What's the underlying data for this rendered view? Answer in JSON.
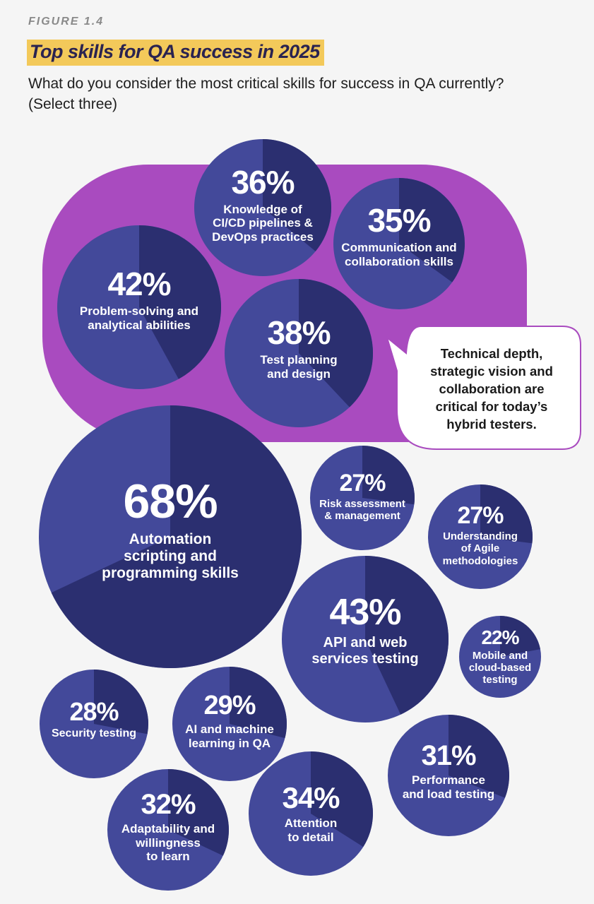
{
  "figure_label": "FIGURE 1.4",
  "title": "Top skills for QA success in 2025",
  "subtitle": "What do you consider the most critical skills for success in QA currently? (Select three)",
  "callout": "Technical depth,\nstrategic vision and\ncollaboration are\ncritical for today’s\nhybrid testers.",
  "colors": {
    "purple_group": "#a94bbf",
    "bubble_light": "#43499a",
    "bubble_dark": "#2b2f70",
    "callout_border": "#a94bbf",
    "title_highlight": "#f3c95a"
  },
  "chart_data": {
    "type": "bubble",
    "title": "Top skills for QA success in 2025",
    "unit": "%",
    "series": [
      {
        "label": "Automation scripting and programming skills",
        "display": "Automation\nscripting and\nprogramming skills",
        "value": 68,
        "highlighted": false
      },
      {
        "label": "API and web services testing",
        "display": "API and web\nservices testing",
        "value": 43,
        "highlighted": false
      },
      {
        "label": "Problem-solving and analytical abilities",
        "display": "Problem-solving and\nanalytical abilities",
        "value": 42,
        "highlighted": true
      },
      {
        "label": "Test planning and design",
        "display": "Test planning\nand design",
        "value": 38,
        "highlighted": true
      },
      {
        "label": "Knowledge of CI/CD pipelines & DevOps practices",
        "display": "Knowledge of\nCI/CD pipelines &\nDevOps practices",
        "value": 36,
        "highlighted": true
      },
      {
        "label": "Communication and collaboration skills",
        "display": "Communication and\ncollaboration skills",
        "value": 35,
        "highlighted": true
      },
      {
        "label": "Attention to detail",
        "display": "Attention\nto detail",
        "value": 34,
        "highlighted": false
      },
      {
        "label": "Adaptability and willingness to learn",
        "display": "Adaptability and\nwillingness\nto learn",
        "value": 32,
        "highlighted": false
      },
      {
        "label": "Performance and load testing",
        "display": "Performance\nand load testing",
        "value": 31,
        "highlighted": false
      },
      {
        "label": "AI and machine learning in QA",
        "display": "AI and machine\nlearning in QA",
        "value": 29,
        "highlighted": false
      },
      {
        "label": "Security testing",
        "display": "Security testing",
        "value": 28,
        "highlighted": false
      },
      {
        "label": "Risk assessment & management",
        "display": "Risk assessment\n& management",
        "value": 27,
        "highlighted": false
      },
      {
        "label": "Understanding of Agile methodologies",
        "display": "Understanding\nof Agile\nmethodologies",
        "value": 27,
        "highlighted": false
      },
      {
        "label": "Mobile and cloud-based testing",
        "display": "Mobile and\ncloud-based\ntesting",
        "value": 22,
        "highlighted": false
      }
    ]
  }
}
